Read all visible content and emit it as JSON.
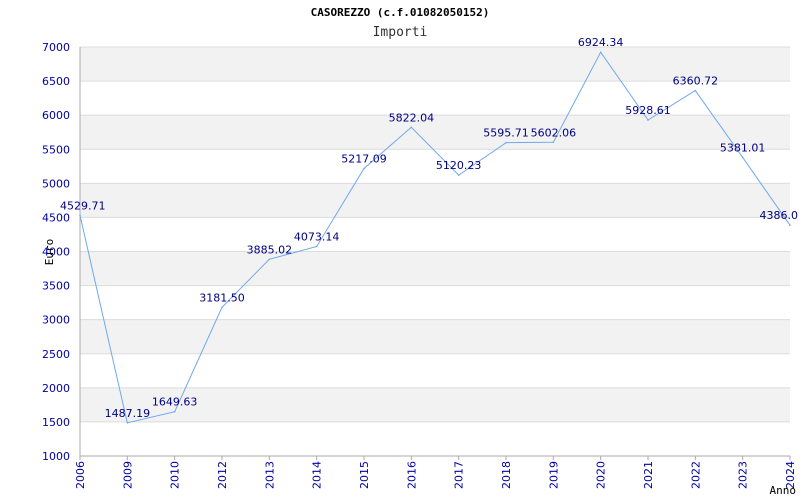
{
  "chart_data": {
    "type": "line",
    "title": "CASOREZZO (c.f.01082050152)",
    "subtitle": "Importi",
    "xlabel": "Anno",
    "ylabel": "Euro",
    "ylim": [
      1000,
      7000
    ],
    "yticks": [
      1000,
      1500,
      2000,
      2500,
      3000,
      3500,
      4000,
      4500,
      5000,
      5500,
      6000,
      6500,
      7000
    ],
    "grid": true,
    "categories": [
      "2006",
      "2009",
      "2010",
      "2012",
      "2013",
      "2014",
      "2015",
      "2016",
      "2017",
      "2018",
      "2019",
      "2020",
      "2021",
      "2022",
      "2023",
      "2024"
    ],
    "series": [
      {
        "values": [
          4529.71,
          1487.19,
          1649.63,
          3181.5,
          3885.02,
          4073.14,
          5217.09,
          5822.04,
          5120.23,
          5595.71,
          5602.06,
          6924.34,
          5928.61,
          6360.72,
          5381.01,
          4386.0
        ],
        "labels": [
          "4529.71",
          "1487.19",
          "1649.63",
          "3181.50",
          "3885.02",
          "4073.14",
          "5217.09",
          "5822.04",
          "5120.23",
          "5595.71",
          "5602.06",
          "6924.34",
          "5928.61",
          "6360.72",
          "5381.01",
          "4386.0"
        ],
        "color": "#6fa8f0"
      }
    ],
    "band_color": "#f2f2f2",
    "axis_text_color": "#0000a0"
  }
}
